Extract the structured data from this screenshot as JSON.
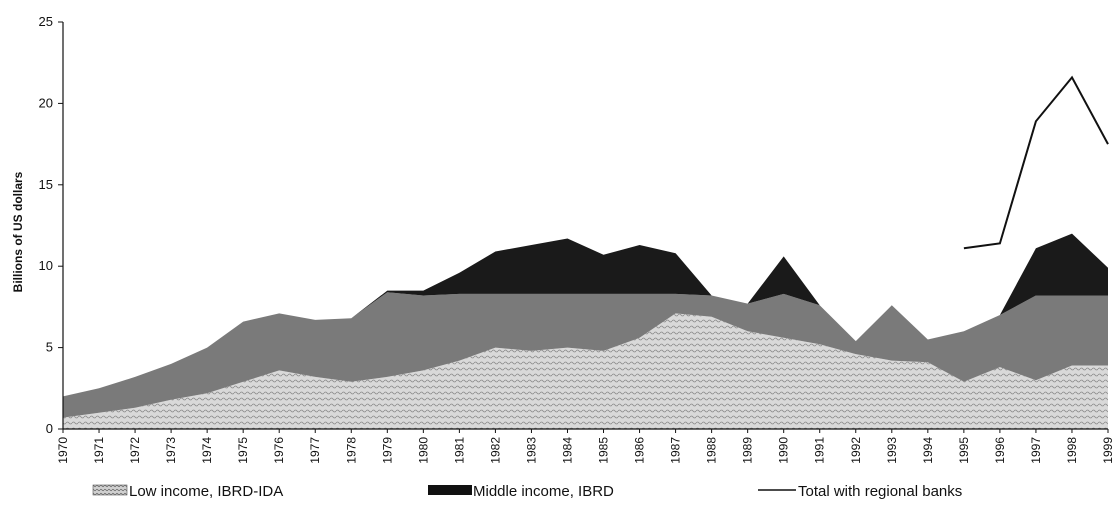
{
  "chart_data": {
    "type": "area",
    "ylabel": "Billions of US dollars",
    "xlabel": "",
    "ylim": [
      0,
      25
    ],
    "yticks": [
      0,
      5,
      10,
      15,
      20,
      25
    ],
    "x": [
      "1970",
      "1971",
      "1972",
      "1973",
      "1974",
      "1975",
      "1976",
      "1977",
      "1978",
      "1979",
      "1980",
      "1981",
      "1982",
      "1983",
      "1984",
      "1985",
      "1986",
      "1987",
      "1988",
      "1989",
      "1990",
      "1991",
      "1992",
      "1993",
      "1994",
      "1995",
      "1996",
      "1997",
      "1998",
      "1999"
    ],
    "series": [
      {
        "name": "Low income, IBRD-IDA",
        "kind": "area-stacked",
        "color": "#cfcfcf",
        "values": [
          0.7,
          1.0,
          1.3,
          1.8,
          2.2,
          2.9,
          3.6,
          3.2,
          2.9,
          3.2,
          3.6,
          4.2,
          5.0,
          4.8,
          5.0,
          4.8,
          5.6,
          7.1,
          6.9,
          6.0,
          5.6,
          5.2,
          4.6,
          4.2,
          4.1,
          2.9,
          3.8,
          3.0,
          3.9,
          3.9
        ]
      },
      {
        "name": "",
        "kind": "area-stacked",
        "color": "#7a7a7a",
        "values": [
          1.3,
          1.5,
          1.9,
          2.2,
          2.8,
          3.7,
          3.5,
          3.5,
          3.9,
          5.2,
          4.6,
          4.1,
          3.3,
          3.5,
          3.3,
          3.5,
          2.7,
          1.2,
          1.3,
          1.7,
          2.7,
          2.4,
          0.8,
          3.4,
          1.4,
          3.1,
          3.2,
          5.2,
          4.3,
          4.3
        ]
      },
      {
        "name": "Middle income, IBRD",
        "kind": "area-stacked",
        "color": "#1a1a1a",
        "values": [
          0,
          0,
          0,
          0,
          0,
          0,
          0,
          0,
          0,
          0.1,
          0.3,
          1.3,
          2.6,
          3.0,
          3.4,
          2.4,
          3.0,
          2.5,
          0,
          0,
          2.3,
          0,
          0,
          0,
          0,
          0,
          0,
          2.9,
          3.8,
          1.7
        ]
      },
      {
        "name": "Total with regional banks",
        "kind": "line",
        "color": "#111111",
        "values": [
          null,
          null,
          null,
          null,
          null,
          null,
          null,
          null,
          null,
          null,
          null,
          null,
          null,
          null,
          null,
          null,
          null,
          null,
          null,
          null,
          null,
          null,
          null,
          null,
          null,
          11.1,
          11.4,
          18.9,
          21.6,
          17.5
        ]
      }
    ],
    "grid": false,
    "legend_position": "bottom"
  },
  "legend": {
    "low_income": "Low income, IBRD-IDA",
    "middle_income": "Middle income, IBRD",
    "total": "Total with regional banks"
  }
}
